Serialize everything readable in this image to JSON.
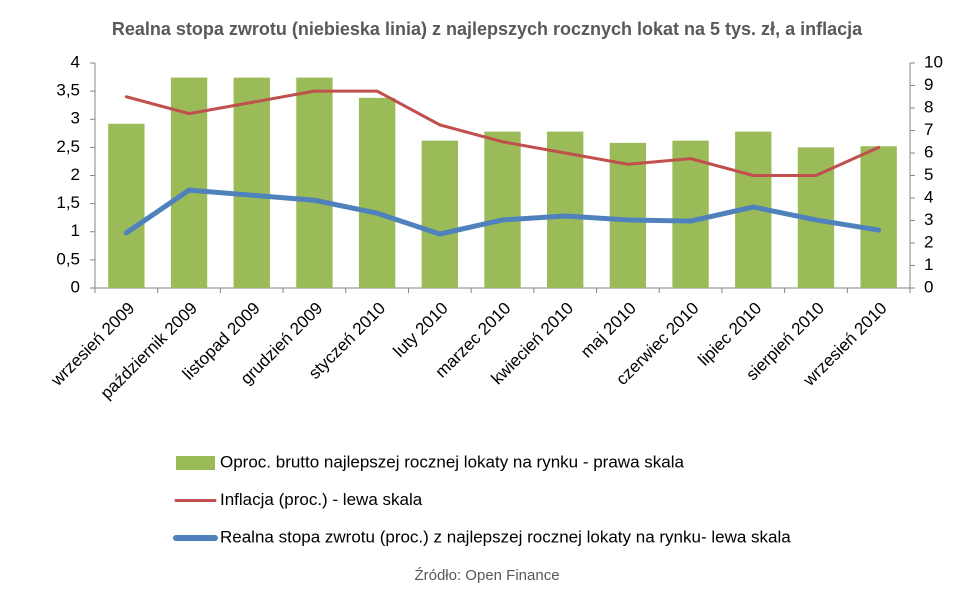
{
  "chart_data": {
    "type": "combo",
    "title": "Realna stopa zwrotu (niebieska linia) z najlepszych rocznych lokat na 5 tys. zł, a inflacja",
    "source": "Źródło: Open Finance",
    "categories": [
      "wrzesień 2009",
      "październik 2009",
      "listopad 2009",
      "grudzień 2009",
      "styczeń 2010",
      "luty 2010",
      "marzec 2010",
      "kwiecień 2010",
      "maj 2010",
      "czerwiec 2010",
      "lipiec 2010",
      "sierpień 2010",
      "wrzesień 2010"
    ],
    "series": [
      {
        "name": "Oproc. brutto najlepszej rocznej lokaty na rynku - prawa skala",
        "type": "bar",
        "axis": "y2",
        "color": "#9bbb59",
        "values": [
          7.3,
          9.35,
          9.35,
          9.35,
          8.45,
          6.55,
          6.95,
          6.95,
          6.45,
          6.55,
          6.95,
          6.25,
          6.3
        ]
      },
      {
        "name": "Inflacja (proc.) - lewa skala",
        "type": "line",
        "axis": "y",
        "color": "#c0504d",
        "values": [
          3.4,
          3.1,
          3.3,
          3.5,
          3.5,
          2.9,
          2.6,
          2.4,
          2.2,
          2.3,
          2.0,
          2.0,
          2.5
        ]
      },
      {
        "name": "Realna stopa zwrotu (proc.) z najlepszej rocznej lokaty na rynku- lewa skala",
        "type": "line",
        "axis": "y",
        "color": "#4f81bd",
        "values": [
          0.98,
          1.74,
          1.65,
          1.56,
          1.33,
          0.96,
          1.21,
          1.28,
          1.21,
          1.19,
          1.44,
          1.21,
          1.03
        ]
      }
    ],
    "ylim": [
      0,
      4
    ],
    "yticks": [
      0,
      {
        "value": 0.5,
        "label": "0,5"
      },
      1,
      {
        "value": 1.5,
        "label": "1,5"
      },
      2,
      {
        "value": 2.5,
        "label": "2,5"
      },
      3,
      {
        "value": 3.5,
        "label": "3,5"
      },
      4
    ],
    "y2lim": [
      0,
      10
    ],
    "y2ticks": [
      0,
      1,
      2,
      3,
      4,
      5,
      6,
      7,
      8,
      9,
      10
    ],
    "legend": "bottom"
  }
}
